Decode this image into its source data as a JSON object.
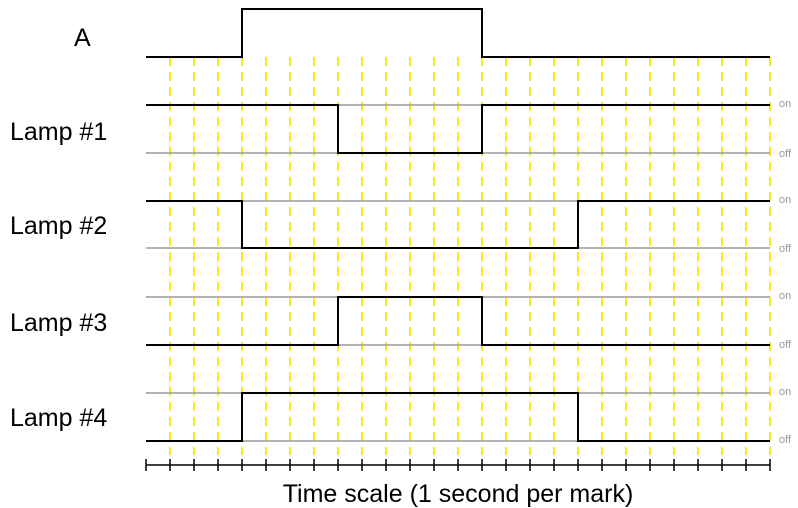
{
  "input": {
    "label": "A",
    "transitions": [
      4,
      14
    ],
    "initial": 0
  },
  "lamps": [
    {
      "label": "Lamp #1",
      "transitions": [
        8,
        14
      ],
      "initial": 1
    },
    {
      "label": "Lamp #2",
      "transitions": [
        4,
        18
      ],
      "initial": 1
    },
    {
      "label": "Lamp #3",
      "transitions": [
        8,
        14
      ],
      "initial": 0
    },
    {
      "label": "Lamp #4",
      "transitions": [
        4,
        18
      ],
      "initial": 0
    }
  ],
  "state_labels": {
    "on": "on",
    "off": "off"
  },
  "time_axis": {
    "title": "Time scale (1 second per mark)",
    "marks": 26
  },
  "colors": {
    "grid": "#ffe600",
    "trace": "#000000",
    "reference": "#9a9a9a"
  }
}
